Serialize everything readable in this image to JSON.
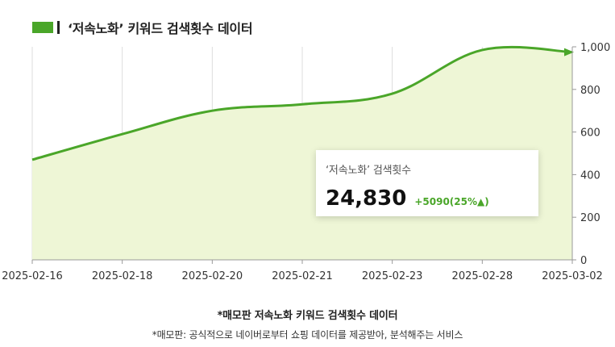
{
  "header": {
    "title": "‘저속노화’ 키워드 검색횟수 데이터",
    "legend_color": "#4aa629"
  },
  "chart_data": {
    "type": "area",
    "title": "‘저속노화’ 키워드 검색횟수 데이터",
    "xlabel": "",
    "ylabel": "",
    "x": [
      "2025-02-16",
      "2025-02-18",
      "2025-02-20",
      "2025-02-21",
      "2025-02-23",
      "2025-02-28",
      "2025-03-02"
    ],
    "y_index": [
      470,
      590,
      700,
      730,
      780,
      985,
      975
    ],
    "ylim": [
      0,
      1000
    ],
    "yticks": [
      "0",
      "200",
      "400",
      "600",
      "800",
      "1,000"
    ],
    "y_axis_side": "right",
    "grid": "vertical",
    "line_color": "#4aa629",
    "fill_color": "#eef6d6"
  },
  "tooltip": {
    "label": "‘저속노화’ 검색횟수",
    "value": "24,830",
    "change": "+5090(25%▲)"
  },
  "footer": {
    "caption_title": "*매모판 저속노화 키워드 검색횟수 데이터",
    "caption_note": "*매모판: 공식적으로 네이버로부터 쇼핑 데이터를 제공받아, 분석해주는 서비스"
  }
}
